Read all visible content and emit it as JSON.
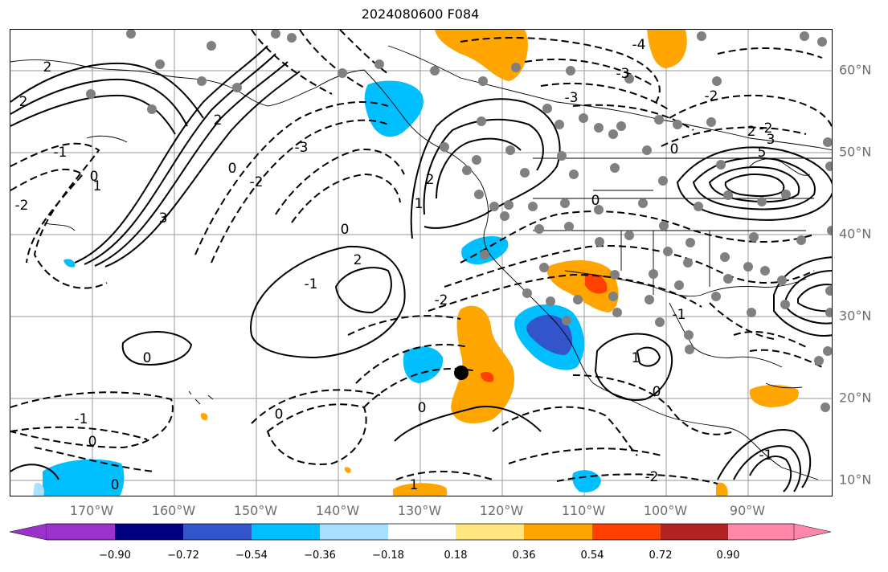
{
  "title": "2024080600 F084",
  "map": {
    "lon_labels": [
      "170°W",
      "160°W",
      "150°W",
      "140°W",
      "130°W",
      "120°W",
      "110°W",
      "100°W",
      "90°W"
    ],
    "lat_labels": [
      "60°N",
      "50°N",
      "40°N",
      "30°N",
      "20°N",
      "10°N"
    ],
    "contour_labels": [
      "2",
      "2",
      "1",
      "-1",
      "0",
      "-2",
      "3",
      "2",
      "0",
      "-2",
      "-3",
      "-3",
      "-4",
      "-3",
      "-2",
      "-2",
      "2",
      "3",
      "5",
      "0",
      "0",
      "2",
      "1",
      "2",
      "-2",
      "0",
      "-1",
      "0",
      "0",
      "0",
      "1",
      "-1",
      "-1",
      "0",
      "0",
      "1",
      "0",
      "-2",
      "-1"
    ],
    "storm_marker": "filled-circle",
    "station_marker": "gray-dot"
  },
  "colorbar": {
    "tick_labels": [
      "−0.90",
      "−0.72",
      "−0.54",
      "−0.36",
      "−0.18",
      "0.18",
      "0.36",
      "0.54",
      "0.72",
      "0.90"
    ],
    "colors": [
      "#9933cc",
      "#000080",
      "#3355cc",
      "#00bfff",
      "#aae0ff",
      "#ffffff",
      "#ffe680",
      "#ffa500",
      "#ff4000",
      "#b22222",
      "#ff88aa"
    ]
  }
}
